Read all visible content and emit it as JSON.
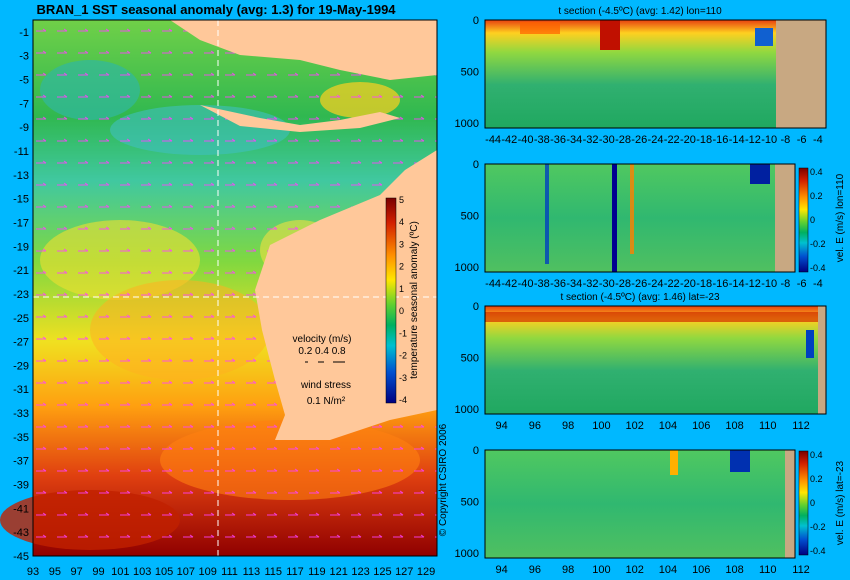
{
  "main_title": "BRAN_1  SST seasonal anomaly  (avg: 1.3) for 19-May-1994",
  "colors": {
    "background": "#00b8ff",
    "land": "#ffc89a",
    "land_section": "#c8a882",
    "vector": "#ff40ff"
  },
  "map": {
    "y_ticks": [
      "-1",
      "-3",
      "-5",
      "-7",
      "-9",
      "-11",
      "-13",
      "-15",
      "-17",
      "-19",
      "-21",
      "-23",
      "-25",
      "-27",
      "-29",
      "-31",
      "-33",
      "-35",
      "-37",
      "-39",
      "-41",
      "-43",
      "-45"
    ],
    "x_ticks": [
      "93",
      "95",
      "97",
      "99",
      "101",
      "103",
      "105",
      "107",
      "109",
      "111",
      "113",
      "115",
      "117",
      "119",
      "121",
      "123",
      "125",
      "127",
      "129"
    ],
    "colorbar": {
      "ticks": [
        "5",
        "4",
        "3",
        "2",
        "1",
        "0",
        "-1",
        "-2",
        "-3",
        "-4"
      ],
      "label": "temperature seasonal anomaly (ºC)"
    },
    "velocity_legend": {
      "title": "velocity (m/s)",
      "values": "0.2 0.4 0.8"
    },
    "wind_legend": {
      "title": "wind stress",
      "value": "0.1 N/m²"
    },
    "copyright": "© Copyright CSIRO 2006"
  },
  "panels": {
    "p1": {
      "title": "t section (-4.5ºC) (avg: 1.42) lon=110",
      "y_ticks": [
        "0",
        "500",
        "1000"
      ],
      "x_ticks": [
        "-44",
        "-42",
        "-40",
        "-38",
        "-36",
        "-34",
        "-32",
        "-30",
        "-28",
        "-26",
        "-24",
        "-22",
        "-20",
        "-18",
        "-16",
        "-14",
        "-12",
        "-10",
        "-8",
        "-6",
        "-4"
      ]
    },
    "p2": {
      "y_ticks": [
        "0",
        "500",
        "1000"
      ],
      "x_ticks": [
        "-44",
        "-42",
        "-40",
        "-38",
        "-36",
        "-34",
        "-32",
        "-30",
        "-28",
        "-26",
        "-24",
        "-22",
        "-20",
        "-18",
        "-16",
        "-14",
        "-12",
        "-10",
        "-8",
        "-6",
        "-4"
      ],
      "cb_ticks": [
        "0.4",
        "0.2",
        "0",
        "-0.2",
        "-0.4"
      ],
      "cb_label": "vel. E (m/s) lon=110"
    },
    "p3": {
      "title": "t section (-4.5ºC) (avg: 1.46) lat=-23",
      "y_ticks": [
        "0",
        "500",
        "1000"
      ],
      "x_ticks": [
        "94",
        "96",
        "98",
        "100",
        "102",
        "104",
        "106",
        "108",
        "110",
        "112"
      ]
    },
    "p4": {
      "y_ticks": [
        "0",
        "500",
        "1000"
      ],
      "x_ticks": [
        "94",
        "96",
        "98",
        "100",
        "102",
        "104",
        "106",
        "108",
        "110",
        "112"
      ],
      "cb_ticks": [
        "0.4",
        "0.2",
        "0",
        "-0.2",
        "-0.4"
      ],
      "cb_label": "vel. E (m/s) lat=-23"
    }
  },
  "chart_data": [
    {
      "type": "heatmap",
      "title": "BRAN_1  SST seasonal anomaly  (avg: 1.3) for 19-May-1994",
      "xlabel": "",
      "ylabel": "",
      "xlim": [
        93,
        130
      ],
      "ylim": [
        -45,
        0
      ],
      "zlim": [
        -4,
        5
      ],
      "colorbar_label": "temperature seasonal anomaly (ºC)",
      "grid": false
    },
    {
      "type": "heatmap",
      "title": "t section (-4.5ºC) (avg: 1.42) lon=110",
      "xlim": [
        -45,
        -3
      ],
      "ylim": [
        1050,
        0
      ]
    },
    {
      "type": "heatmap",
      "title": "",
      "xlim": [
        -45,
        -3
      ],
      "ylim": [
        1050,
        0
      ],
      "zlim": [
        -0.4,
        0.4
      ],
      "colorbar_label": "vel. E (m/s) lon=110"
    },
    {
      "type": "heatmap",
      "title": "t section (-4.5ºC) (avg: 1.46) lat=-23",
      "xlim": [
        93,
        113.5
      ],
      "ylim": [
        1050,
        0
      ]
    },
    {
      "type": "heatmap",
      "title": "",
      "xlim": [
        93,
        113.5
      ],
      "ylim": [
        1050,
        0
      ],
      "zlim": [
        -0.4,
        0.4
      ],
      "colorbar_label": "vel. E (m/s) lat=-23"
    }
  ]
}
